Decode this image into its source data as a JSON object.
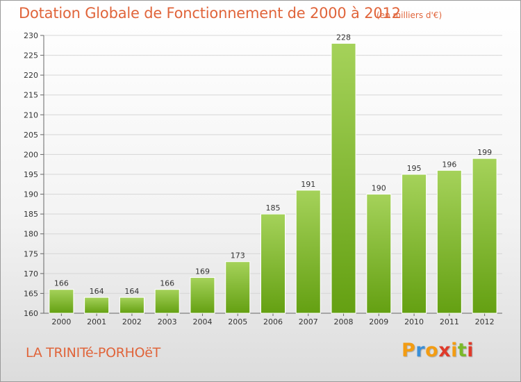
{
  "header": {
    "title": "Dotation Globale de Fonctionnement de 2000 à 2012",
    "unit_note": "(en milliers d'€)"
  },
  "footer": {
    "commune": "LA TRINITé-PORHOëT",
    "brand": {
      "letters": [
        "P",
        "r",
        "o",
        "x",
        "i",
        "t",
        "i"
      ],
      "colors": [
        "#f39c12",
        "#3a8fd8",
        "#f39c12",
        "#e03a2a",
        "#f39c12",
        "#7ab929",
        "#e03a2a"
      ]
    }
  },
  "chart_data": {
    "type": "bar",
    "title": "Dotation Globale de Fonctionnement de 2000 à 2012",
    "subtitle": "(en milliers d'€)",
    "categories": [
      "2000",
      "2001",
      "2002",
      "2003",
      "2004",
      "2005",
      "2006",
      "2007",
      "2008",
      "2009",
      "2010",
      "2011",
      "2012"
    ],
    "values": [
      166,
      164,
      164,
      166,
      169,
      173,
      185,
      191,
      228,
      190,
      195,
      196,
      199
    ],
    "xlabel": "",
    "ylabel": "",
    "ylim": [
      160,
      230
    ],
    "yticks": [
      160,
      165,
      170,
      175,
      180,
      185,
      190,
      195,
      200,
      205,
      210,
      215,
      220,
      225,
      230
    ],
    "grid": true,
    "legend": "none",
    "bar_color_top": "#a5d25a",
    "bar_color_bottom": "#64a012"
  }
}
